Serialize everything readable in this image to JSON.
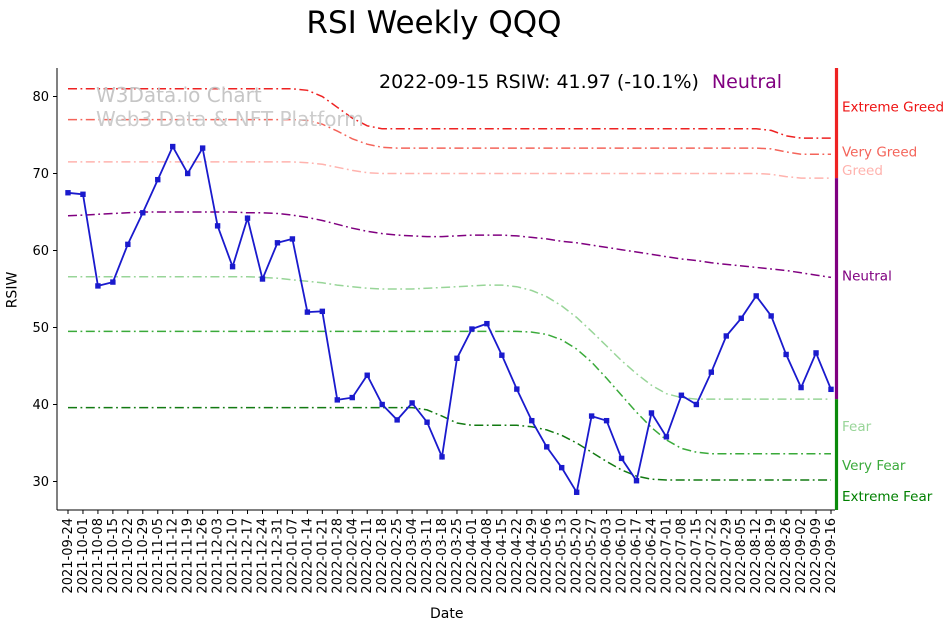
{
  "title": "RSI Weekly QQQ",
  "annotation": {
    "text": "2022-09-15 RSIW: 41.97 (-10.1%)",
    "zone_label": "Neutral",
    "zone_color": "#800080"
  },
  "watermark": {
    "line1": "W3Data.io Chart",
    "line2": "Web3 Data & NFT Platform"
  },
  "chart_data": {
    "type": "line",
    "title": "RSI Weekly QQQ",
    "xlabel": "Date",
    "ylabel": "RSIW",
    "ylim": [
      26.3,
      83.7
    ],
    "yticks": [
      30,
      40,
      50,
      60,
      70,
      80
    ],
    "grid": false,
    "legend_position": "right-edge-labels",
    "x": [
      "2021-09-24",
      "2021-10-01",
      "2021-10-08",
      "2021-10-15",
      "2021-10-22",
      "2021-10-29",
      "2021-11-05",
      "2021-11-12",
      "2021-11-19",
      "2021-11-26",
      "2021-12-03",
      "2021-12-10",
      "2021-12-17",
      "2021-12-24",
      "2021-12-31",
      "2022-01-07",
      "2022-01-14",
      "2022-01-21",
      "2022-01-28",
      "2022-02-04",
      "2022-02-11",
      "2022-02-18",
      "2022-02-25",
      "2022-03-04",
      "2022-03-11",
      "2022-03-18",
      "2022-03-25",
      "2022-04-01",
      "2022-04-08",
      "2022-04-15",
      "2022-04-22",
      "2022-04-29",
      "2022-05-06",
      "2022-05-13",
      "2022-05-20",
      "2022-05-27",
      "2022-06-03",
      "2022-06-10",
      "2022-06-17",
      "2022-06-24",
      "2022-07-01",
      "2022-07-08",
      "2022-07-15",
      "2022-07-22",
      "2022-07-29",
      "2022-08-05",
      "2022-08-12",
      "2022-08-19",
      "2022-08-26",
      "2022-09-02",
      "2022-09-09",
      "2022-09-16"
    ],
    "series": [
      {
        "name": "Extreme Greed",
        "color": "#ee2222",
        "style": "dashdot",
        "marker": "none",
        "values": [
          81,
          81,
          81,
          81,
          81,
          81,
          81,
          81,
          81,
          81,
          81,
          81,
          81,
          81,
          81,
          81,
          80.8,
          80,
          78.6,
          77.2,
          76.2,
          75.8,
          75.8,
          75.8,
          75.8,
          75.8,
          75.8,
          75.8,
          75.8,
          75.8,
          75.8,
          75.8,
          75.8,
          75.8,
          75.8,
          75.8,
          75.8,
          75.8,
          75.8,
          75.8,
          75.8,
          75.8,
          75.8,
          75.8,
          75.8,
          75.8,
          75.8,
          75.6,
          74.9,
          74.6,
          74.6,
          74.6
        ]
      },
      {
        "name": "Very Greed",
        "color": "#f4645a",
        "style": "dashdot",
        "marker": "none",
        "values": [
          77,
          77,
          77,
          77,
          77,
          77,
          77,
          77,
          77,
          77,
          77,
          77,
          77,
          77,
          77,
          77,
          76.9,
          76.4,
          75.5,
          74.5,
          73.8,
          73.4,
          73.3,
          73.3,
          73.3,
          73.3,
          73.3,
          73.3,
          73.3,
          73.3,
          73.3,
          73.3,
          73.3,
          73.3,
          73.3,
          73.3,
          73.3,
          73.3,
          73.3,
          73.3,
          73.3,
          73.3,
          73.3,
          73.3,
          73.3,
          73.3,
          73.3,
          73.2,
          72.8,
          72.5,
          72.5,
          72.5
        ]
      },
      {
        "name": "Greed",
        "color": "#ffb3ae",
        "style": "dashdot",
        "marker": "none",
        "values": [
          71.5,
          71.5,
          71.5,
          71.5,
          71.5,
          71.5,
          71.5,
          71.5,
          71.5,
          71.5,
          71.5,
          71.5,
          71.5,
          71.5,
          71.5,
          71.5,
          71.4,
          71.2,
          70.8,
          70.4,
          70.1,
          70,
          70,
          70,
          70,
          70,
          70,
          70,
          70,
          70,
          70,
          70,
          70,
          70,
          70,
          70,
          70,
          70,
          70,
          70,
          70,
          70,
          70,
          70,
          70,
          70,
          70,
          69.9,
          69.6,
          69.4,
          69.4,
          69.4
        ]
      },
      {
        "name": "Neutral",
        "color": "#800080",
        "style": "dashdot",
        "marker": "none",
        "values": [
          64.5,
          64.6,
          64.7,
          64.8,
          64.9,
          65,
          65,
          65,
          65,
          65,
          65,
          65,
          64.9,
          64.9,
          64.8,
          64.6,
          64.3,
          63.9,
          63.4,
          62.9,
          62.5,
          62.2,
          62,
          61.9,
          61.8,
          61.8,
          61.9,
          62,
          62,
          62,
          61.9,
          61.7,
          61.5,
          61.2,
          61,
          60.7,
          60.4,
          60.1,
          59.8,
          59.5,
          59.2,
          58.9,
          58.7,
          58.4,
          58.2,
          58,
          57.8,
          57.6,
          57.4,
          57.1,
          56.8,
          56.5
        ]
      },
      {
        "name": "Fear",
        "color": "#98d598",
        "style": "dashdot",
        "marker": "none",
        "values": [
          56.6,
          56.6,
          56.6,
          56.6,
          56.6,
          56.6,
          56.6,
          56.6,
          56.6,
          56.6,
          56.6,
          56.6,
          56.6,
          56.5,
          56.4,
          56.2,
          56,
          55.8,
          55.5,
          55.3,
          55.1,
          55,
          55,
          55,
          55.1,
          55.2,
          55.3,
          55.4,
          55.5,
          55.5,
          55.3,
          54.8,
          54,
          52.8,
          51.3,
          49.5,
          47.6,
          45.7,
          44,
          42.5,
          41.4,
          40.9,
          40.7,
          40.7,
          40.7,
          40.7,
          40.7,
          40.7,
          40.7,
          40.7,
          40.7,
          40.7
        ]
      },
      {
        "name": "Very Fear",
        "color": "#3aaa3a",
        "style": "dashdot",
        "marker": "none",
        "values": [
          49.5,
          49.5,
          49.5,
          49.5,
          49.5,
          49.5,
          49.5,
          49.5,
          49.5,
          49.5,
          49.5,
          49.5,
          49.5,
          49.5,
          49.5,
          49.5,
          49.5,
          49.5,
          49.5,
          49.5,
          49.5,
          49.5,
          49.5,
          49.5,
          49.5,
          49.5,
          49.5,
          49.5,
          49.5,
          49.5,
          49.5,
          49.4,
          49.1,
          48.4,
          47.2,
          45.5,
          43.4,
          41.2,
          39,
          37,
          35.4,
          34.3,
          33.8,
          33.6,
          33.6,
          33.6,
          33.6,
          33.6,
          33.6,
          33.6,
          33.6,
          33.6
        ]
      },
      {
        "name": "Extreme Fear",
        "color": "#127a12",
        "style": "dashdot",
        "marker": "none",
        "values": [
          39.6,
          39.6,
          39.6,
          39.6,
          39.6,
          39.6,
          39.6,
          39.6,
          39.6,
          39.6,
          39.6,
          39.6,
          39.6,
          39.6,
          39.6,
          39.6,
          39.6,
          39.6,
          39.6,
          39.6,
          39.6,
          39.6,
          39.6,
          39.6,
          39.3,
          38.5,
          37.6,
          37.3,
          37.3,
          37.3,
          37.3,
          37.1,
          36.7,
          36,
          35,
          33.8,
          32.6,
          31.5,
          30.7,
          30.3,
          30.2,
          30.2,
          30.2,
          30.2,
          30.2,
          30.2,
          30.2,
          30.2,
          30.2,
          30.2,
          30.2,
          30.2
        ]
      },
      {
        "name": "RSIW",
        "color": "#1a1acd",
        "style": "solid",
        "marker": "square",
        "values": [
          67.5,
          67.3,
          55.4,
          55.9,
          60.8,
          64.9,
          69.2,
          73.5,
          70,
          73.3,
          63.2,
          57.9,
          64.2,
          56.3,
          61,
          61.5,
          52,
          52.1,
          40.6,
          40.9,
          43.8,
          40,
          38,
          40.2,
          37.7,
          33.2,
          46,
          49.8,
          50.5,
          46.4,
          42,
          37.9,
          34.5,
          31.8,
          28.6,
          38.5,
          37.9,
          33,
          30.1,
          38.9,
          35.8,
          41.2,
          40,
          44.2,
          48.9,
          51.2,
          54.1,
          51.5,
          46.5,
          42.2,
          46.7,
          41.97
        ]
      }
    ],
    "right_labels": [
      {
        "text": "Extreme Greed",
        "value": 78.6,
        "color": "#ee1111"
      },
      {
        "text": "Very Greed",
        "value": 72.7,
        "color": "#f4645a"
      },
      {
        "text": "Greed",
        "value": 70.3,
        "color": "#ffb3ae"
      },
      {
        "text": "Neutral",
        "value": 56.6,
        "color": "#800080"
      },
      {
        "text": "Fear",
        "value": 37.1,
        "color": "#98d598"
      },
      {
        "text": "Very Fear",
        "value": 32.0,
        "color": "#3aaa3a"
      },
      {
        "text": "Extreme Fear",
        "value": 28.0,
        "color": "#008000"
      }
    ],
    "spine_segments": [
      {
        "name": "greed-zone",
        "from": 83.7,
        "to": 69.4,
        "color": "#ee2222"
      },
      {
        "name": "neutral-zone",
        "from": 69.4,
        "to": 40.7,
        "color": "#800080"
      },
      {
        "name": "fear-zone",
        "from": 40.7,
        "to": 26.3,
        "color": "#0b8a0b"
      }
    ]
  }
}
